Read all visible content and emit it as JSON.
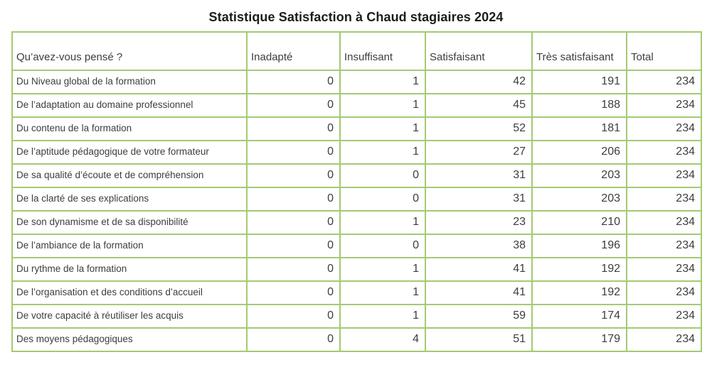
{
  "title": "Statistique Satisfaction à Chaud stagiaires 2024",
  "colors": {
    "table_border": "#a3ca73",
    "text": "#3d3d3d",
    "title_text": "#1c1c1c",
    "background": "#ffffff"
  },
  "table": {
    "columns": [
      "Qu’avez-vous pensé ?",
      "Inadapté",
      "Insuffisant",
      "Satisfaisant",
      "Très satisfaisant",
      "Total"
    ],
    "rows": [
      {
        "label": "Du Niveau global de la formation",
        "values": [
          0,
          1,
          42,
          191,
          234
        ]
      },
      {
        "label": "De l’adaptation au domaine professionnel",
        "values": [
          0,
          1,
          45,
          188,
          234
        ]
      },
      {
        "label": "Du contenu de la formation",
        "values": [
          0,
          1,
          52,
          181,
          234
        ]
      },
      {
        "label": "De l’aptitude pédagogique de votre formateur",
        "values": [
          0,
          1,
          27,
          206,
          234
        ]
      },
      {
        "label": "De sa qualité d’écoute et de compréhension",
        "values": [
          0,
          0,
          31,
          203,
          234
        ]
      },
      {
        "label": "De la clarté de ses explications",
        "values": [
          0,
          0,
          31,
          203,
          234
        ]
      },
      {
        "label": "De son dynamisme et de sa disponibilité",
        "values": [
          0,
          1,
          23,
          210,
          234
        ]
      },
      {
        "label": "De l’ambiance de la formation",
        "values": [
          0,
          0,
          38,
          196,
          234
        ]
      },
      {
        "label": "Du rythme de la formation",
        "values": [
          0,
          1,
          41,
          192,
          234
        ]
      },
      {
        "label": "De l’organisation et des conditions d’accueil",
        "values": [
          0,
          1,
          41,
          192,
          234
        ]
      },
      {
        "label": "De votre capacité à réutiliser les acquis",
        "values": [
          0,
          1,
          59,
          174,
          234
        ]
      },
      {
        "label": "Des moyens pédagogiques",
        "values": [
          0,
          4,
          51,
          179,
          234
        ]
      }
    ]
  },
  "chart_data": {
    "type": "table",
    "title": "Statistique Satisfaction à Chaud stagiaires 2024",
    "columns": [
      "Qu’avez-vous pensé ?",
      "Inadapté",
      "Insuffisant",
      "Satisfaisant",
      "Très satisfaisant",
      "Total"
    ],
    "categories": [
      "Du Niveau global de la formation",
      "De l’adaptation au domaine professionnel",
      "Du contenu de la formation",
      "De l’aptitude pédagogique de votre formateur",
      "De sa qualité d’écoute et de compréhension",
      "De la clarté de ses explications",
      "De son dynamisme et de sa disponibilité",
      "De l’ambiance de la formation",
      "Du rythme de la formation",
      "De l’organisation et des conditions d’accueil",
      "De votre capacité à réutiliser les acquis",
      "Des moyens pédagogiques"
    ],
    "series": [
      {
        "name": "Inadapté",
        "values": [
          0,
          0,
          0,
          0,
          0,
          0,
          0,
          0,
          0,
          0,
          0,
          0
        ]
      },
      {
        "name": "Insuffisant",
        "values": [
          1,
          1,
          1,
          1,
          0,
          0,
          1,
          0,
          1,
          1,
          1,
          4
        ]
      },
      {
        "name": "Satisfaisant",
        "values": [
          42,
          45,
          52,
          27,
          31,
          31,
          23,
          38,
          41,
          41,
          59,
          51
        ]
      },
      {
        "name": "Très satisfaisant",
        "values": [
          191,
          188,
          181,
          206,
          203,
          203,
          210,
          196,
          192,
          192,
          174,
          179
        ]
      },
      {
        "name": "Total",
        "values": [
          234,
          234,
          234,
          234,
          234,
          234,
          234,
          234,
          234,
          234,
          234,
          234
        ]
      }
    ]
  }
}
